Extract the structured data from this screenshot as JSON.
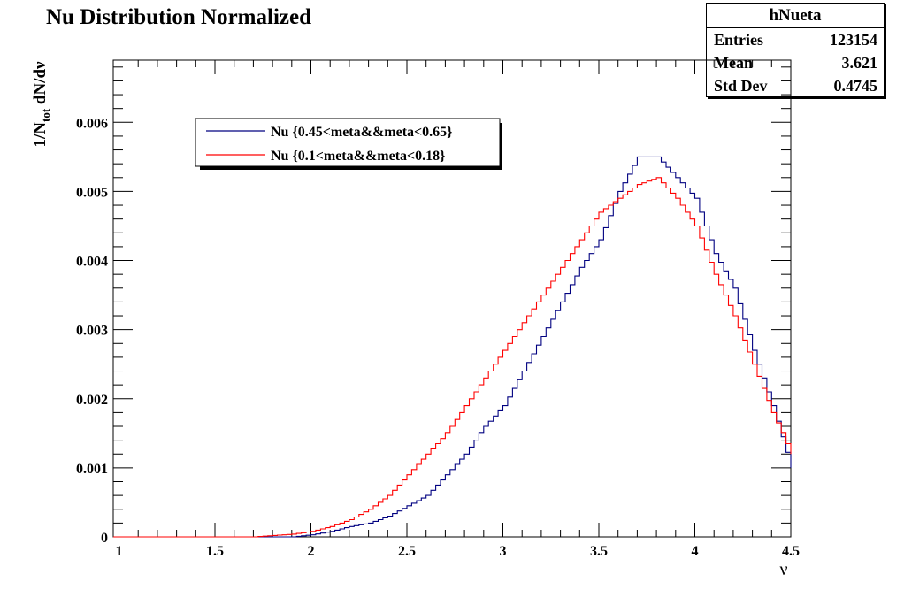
{
  "chart_data": {
    "type": "line",
    "title": "Nu Distribution Normalized",
    "xlabel": "ν",
    "ylabel_main": "1/N",
    "ylabel_sub": "tot",
    "ylabel_tail": " dN/dν",
    "xlim": [
      0.97,
      4.5
    ],
    "ylim": [
      0,
      0.0069
    ],
    "x_ticks": [
      1,
      1.5,
      2,
      2.5,
      3,
      3.5,
      4,
      4.5
    ],
    "x_tick_labels": [
      "1",
      "1.5",
      "2",
      "2.5",
      "3",
      "3.5",
      "4",
      "4.5"
    ],
    "y_ticks": [
      0,
      0.001,
      0.002,
      0.003,
      0.004,
      0.005,
      0.006
    ],
    "y_tick_labels": [
      "0",
      "0.001",
      "0.002",
      "0.003",
      "0.004",
      "0.005",
      "0.006"
    ],
    "legend_position": "top-left",
    "stats": {
      "name": "hNueta",
      "rows": [
        {
          "label": "Entries",
          "value": "123154"
        },
        {
          "label": "Mean",
          "value": "3.621"
        },
        {
          "label": "Std Dev",
          "value": "0.4745"
        }
      ]
    },
    "series": [
      {
        "name": "Nu {0.45<meta&&meta<0.65}",
        "color": "#000080",
        "x": [
          1.9,
          2.0,
          2.1,
          2.2,
          2.3,
          2.4,
          2.5,
          2.6,
          2.7,
          2.8,
          2.9,
          3.0,
          3.1,
          3.2,
          3.3,
          3.4,
          3.5,
          3.6,
          3.7,
          3.8,
          3.9,
          4.0,
          4.1,
          4.2,
          4.3,
          4.4,
          4.5
        ],
        "y": [
          0.0,
          3e-05,
          8e-05,
          0.00015,
          0.0002,
          0.0003,
          0.00045,
          0.0006,
          0.0009,
          0.0012,
          0.0016,
          0.0019,
          0.0024,
          0.0029,
          0.0034,
          0.0039,
          0.0043,
          0.005,
          0.0055,
          0.0055,
          0.0052,
          0.0049,
          0.0041,
          0.0036,
          0.0027,
          0.0019,
          0.001
        ]
      },
      {
        "name": "Nu {0.1<meta&&meta<0.18}",
        "color": "#ff0000",
        "x": [
          1.7,
          1.8,
          1.9,
          2.0,
          2.1,
          2.2,
          2.3,
          2.4,
          2.5,
          2.6,
          2.7,
          2.8,
          2.9,
          3.0,
          3.1,
          3.2,
          3.3,
          3.4,
          3.5,
          3.6,
          3.7,
          3.8,
          3.9,
          4.0,
          4.1,
          4.2,
          4.3,
          4.4,
          4.5
        ],
        "y": [
          0.0,
          2e-05,
          4e-05,
          8e-05,
          0.00015,
          0.00025,
          0.0004,
          0.0006,
          0.0009,
          0.0012,
          0.0015,
          0.0019,
          0.0023,
          0.0027,
          0.0031,
          0.0035,
          0.0039,
          0.0043,
          0.0047,
          0.0049,
          0.0051,
          0.0052,
          0.0049,
          0.0045,
          0.0038,
          0.0032,
          0.0025,
          0.0018,
          0.0012
        ]
      }
    ]
  }
}
